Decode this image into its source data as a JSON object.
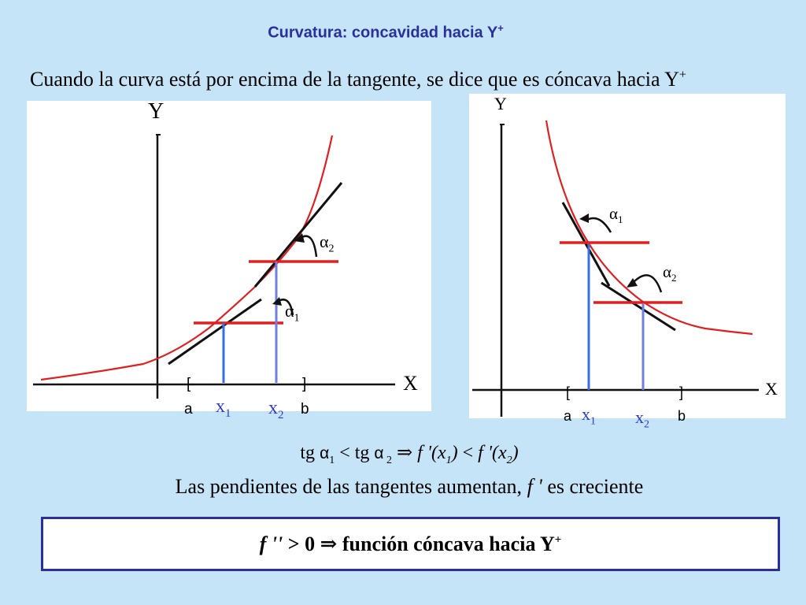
{
  "title": {
    "text": "Curvatura: concavidad hacia Y",
    "sup": "+"
  },
  "subtitle": {
    "text": "Cuando la curva está por encima de la tangente, se dice que es cóncava hacia Y",
    "sup": "+"
  },
  "diagram_left": {
    "y_axis": "Y",
    "x_axis": "X",
    "bracket_open": "[",
    "bracket_close": "]",
    "a": "a",
    "b": "b",
    "x1": "x",
    "x1_sub": "1",
    "x2": "x",
    "x2_sub": "2",
    "alpha1": "α",
    "alpha1_sub": "1",
    "alpha2": "α",
    "alpha2_sub": "2"
  },
  "diagram_right": {
    "y_axis": "Y",
    "x_axis": "X",
    "bracket_open": "[",
    "bracket_close": "]",
    "a": "a",
    "b": "b",
    "x1": "x",
    "x1_sub": "1",
    "x2": "x",
    "x2_sub": "2",
    "alpha1": "α",
    "alpha1_sub": "1",
    "alpha2": "α",
    "alpha2_sub": "2"
  },
  "formula": {
    "tg1": "tg ",
    "alpha1": "α",
    "sub1": "1",
    "lt1": " < tg ",
    "alpha2": "α",
    "sub2": " 2",
    "implies": " ⇒ ",
    "fpx1": "f '(x",
    "fsub1": "1",
    "close1": ") ",
    "lt2": "< ",
    "fpx2": "f '(x",
    "fsub2": "2",
    "close2": ")"
  },
  "sentence": {
    "pre": "Las pendientes de las tangentes aumentan, ",
    "fprime": "f '",
    "post": " es creciente"
  },
  "conclusion": {
    "fpp": "f ''",
    "rest": " > 0 ⇒ función cóncava hacia Y",
    "sup": "+"
  },
  "colors": {
    "title": "#2a2f9e",
    "background": "#c6e4f7",
    "curve": "#e02020",
    "tangent": "#111111",
    "horizontal": "#e02020",
    "vertical": "#3a6fe0",
    "box_border": "#2a2f9e"
  }
}
